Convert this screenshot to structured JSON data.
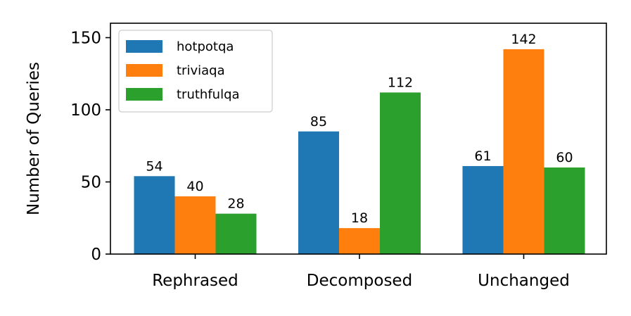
{
  "chart_data": {
    "type": "bar",
    "title": "",
    "xlabel": "",
    "ylabel": "Number of Queries",
    "categories": [
      "Rephrased",
      "Decomposed",
      "Unchanged"
    ],
    "series": [
      {
        "name": "hotpotqa",
        "color": "#1f77b4",
        "values": [
          54,
          85,
          61
        ]
      },
      {
        "name": "triviaqa",
        "color": "#ff7f0e",
        "values": [
          40,
          18,
          142
        ]
      },
      {
        "name": "truthfulqa",
        "color": "#2ca02c",
        "values": [
          28,
          112,
          60
        ]
      }
    ],
    "ylim": [
      0,
      160
    ],
    "yticks": [
      0,
      50,
      100,
      150
    ],
    "grid": false,
    "legend_position": "top-left",
    "data_labels": true
  }
}
